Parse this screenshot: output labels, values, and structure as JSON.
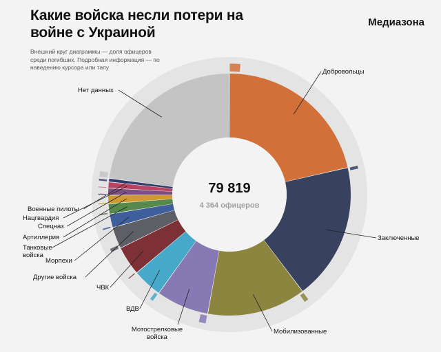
{
  "header": {
    "title": "Какие войска несли потери на войне с Украиной",
    "brand": "Медиазона",
    "note": "Внешний круг диаграммы — доля офицеров среди погибших. Подробная информация — по наведению курсора или тапу"
  },
  "chart_data": {
    "type": "donut",
    "total_label": "79 819",
    "officers_label": "4 364 офицеров",
    "total": 79819,
    "officers_total": 4364,
    "segments": [
      {
        "name": "Добровольцы",
        "value": 17100,
        "officer_share": 0.06,
        "color": "#d2703a"
      },
      {
        "name": "Заключенные",
        "value": 14600,
        "officer_share": 0.02,
        "color": "#38425e"
      },
      {
        "name": "Мобилизованные",
        "value": 10500,
        "officer_share": 0.04,
        "color": "#8c8540"
      },
      {
        "name": "Мотострелковые войска",
        "value": 5600,
        "officer_share": 0.12,
        "color": "#8779b4"
      },
      {
        "name": "ВДВ",
        "value": 3150,
        "officer_share": 0.1,
        "color": "#47a9ca"
      },
      {
        "name": "ЧВК",
        "value": 3100,
        "officer_share": 0.03,
        "color": "#7d3035"
      },
      {
        "name": "Другие войска",
        "value": 2300,
        "officer_share": 0.15,
        "color": "#5e5e66"
      },
      {
        "name": "Морпехи",
        "value": 1450,
        "officer_share": 0.09,
        "color": "#3f5f9c"
      },
      {
        "name": "Танковые войска",
        "value": 1100,
        "officer_share": 0.12,
        "color": "#58894c"
      },
      {
        "name": "Артиллерия",
        "value": 900,
        "officer_share": 0.1,
        "color": "#d09a30"
      },
      {
        "name": "Спецназ",
        "value": 750,
        "officer_share": 0.15,
        "color": "#7c4f82"
      },
      {
        "name": "Нацгвардия",
        "value": 650,
        "officer_share": 0.08,
        "color": "#b84363"
      },
      {
        "name": "Военные пилоты",
        "value": 380,
        "officer_share": 0.45,
        "color": "#2f3c6c"
      },
      {
        "name": "Нет данных",
        "value": 18239,
        "officer_share": 0.03,
        "color": "#c4c4c4"
      }
    ]
  }
}
